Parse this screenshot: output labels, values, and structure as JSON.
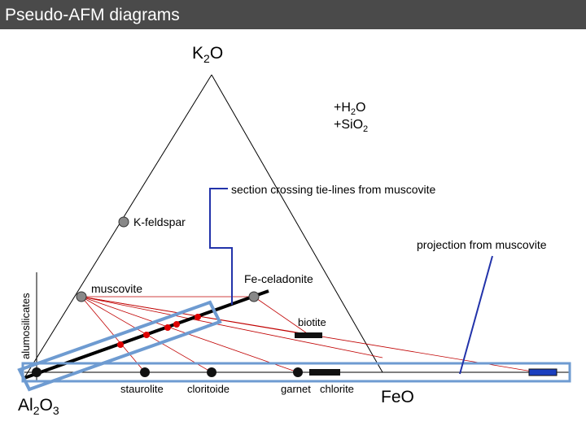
{
  "header": {
    "title": "Pseudo-AFM diagrams"
  },
  "apices": {
    "top": [
      "K",
      "2",
      "O"
    ],
    "left": [
      "Al",
      "2",
      "O",
      "3"
    ],
    "right": "FeO"
  },
  "additions": [
    [
      "+H",
      "2",
      "O"
    ],
    [
      "+SiO",
      "2"
    ]
  ],
  "annotations": {
    "section": "section crossing tie-lines from muscovite",
    "projection": "projection from muscovite",
    "side": "alumosilicates"
  },
  "minerals": {
    "k_feldspar": "K-feldspar",
    "muscovite": "muscovite",
    "fe_celadonite": "Fe-celadonite",
    "biotite": "biotite",
    "staurolite": "staurolite",
    "chloritoide": "cloritoide",
    "garnet": "garnet",
    "chlorite": "chlorite"
  }
}
